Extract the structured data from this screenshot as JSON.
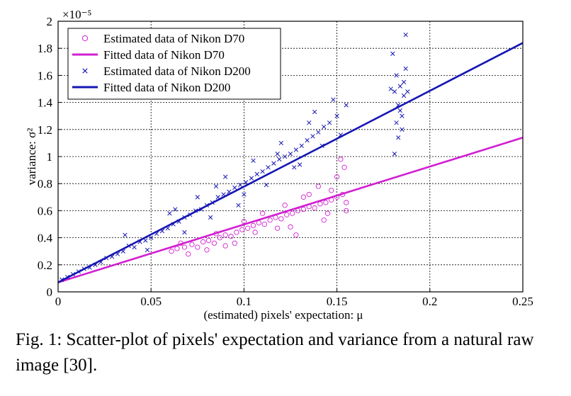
{
  "caption": "Fig. 1: Scatter-plot of pixels' expectation and variance from a natural raw image [30].",
  "chart_data": {
    "type": "scatter",
    "xlabel": "(estimated) pixels' expectation: μ",
    "ylabel": "variance: σ²",
    "y_multiplier": "×10⁻⁵",
    "xlim": [
      0,
      0.25
    ],
    "ylim": [
      0,
      2
    ],
    "x_ticks": [
      "0",
      "0.05",
      "0.1",
      "0.15",
      "0.2",
      "0.25"
    ],
    "y_ticks": [
      "0",
      "0.2",
      "0.4",
      "0.6",
      "0.8",
      "1",
      "1.2",
      "1.4",
      "1.6",
      "1.8",
      "2"
    ],
    "grid": true,
    "legend_position": "top-left",
    "colors": {
      "d70": "#d21fd2",
      "d200": "#1515b4"
    },
    "series": [
      {
        "name": "Estimated data of Nikon D70",
        "marker": "circle",
        "color": "#d21fd2",
        "points": [
          [
            0.061,
            0.3
          ],
          [
            0.064,
            0.32
          ],
          [
            0.068,
            0.33
          ],
          [
            0.072,
            0.35
          ],
          [
            0.075,
            0.33
          ],
          [
            0.078,
            0.37
          ],
          [
            0.081,
            0.38
          ],
          [
            0.084,
            0.36
          ],
          [
            0.087,
            0.4
          ],
          [
            0.09,
            0.42
          ],
          [
            0.093,
            0.41
          ],
          [
            0.096,
            0.44
          ],
          [
            0.099,
            0.46
          ],
          [
            0.102,
            0.47
          ],
          [
            0.105,
            0.49
          ],
          [
            0.108,
            0.51
          ],
          [
            0.111,
            0.5
          ],
          [
            0.114,
            0.53
          ],
          [
            0.117,
            0.55
          ],
          [
            0.12,
            0.54
          ],
          [
            0.123,
            0.57
          ],
          [
            0.126,
            0.58
          ],
          [
            0.129,
            0.6
          ],
          [
            0.132,
            0.61
          ],
          [
            0.135,
            0.63
          ],
          [
            0.138,
            0.62
          ],
          [
            0.141,
            0.65
          ],
          [
            0.144,
            0.66
          ],
          [
            0.147,
            0.68
          ],
          [
            0.15,
            0.7
          ],
          [
            0.153,
            0.72
          ],
          [
            0.155,
            0.66
          ],
          [
            0.07,
            0.28
          ],
          [
            0.085,
            0.43
          ],
          [
            0.095,
            0.36
          ],
          [
            0.11,
            0.58
          ],
          [
            0.125,
            0.48
          ],
          [
            0.135,
            0.72
          ],
          [
            0.145,
            0.58
          ],
          [
            0.15,
            0.85
          ],
          [
            0.152,
            0.98
          ],
          [
            0.154,
            0.92
          ],
          [
            0.128,
            0.42
          ],
          [
            0.14,
            0.78
          ],
          [
            0.118,
            0.47
          ],
          [
            0.1,
            0.52
          ],
          [
            0.08,
            0.31
          ],
          [
            0.09,
            0.34
          ],
          [
            0.106,
            0.44
          ],
          [
            0.132,
            0.7
          ],
          [
            0.147,
            0.75
          ],
          [
            0.155,
            0.6
          ],
          [
            0.143,
            0.53
          ],
          [
            0.122,
            0.64
          ],
          [
            0.066,
            0.36
          ]
        ]
      },
      {
        "name": "Fitted data of Nikon D70",
        "type": "line",
        "color": "#d21fd2",
        "x": [
          0,
          0.25
        ],
        "y": [
          0.07,
          1.14
        ]
      },
      {
        "name": "Estimated data of Nikon D200",
        "marker": "x",
        "color": "#1515b4",
        "points": [
          [
            0.002,
            0.09
          ],
          [
            0.005,
            0.11
          ],
          [
            0.008,
            0.13
          ],
          [
            0.011,
            0.15
          ],
          [
            0.014,
            0.17
          ],
          [
            0.017,
            0.18
          ],
          [
            0.02,
            0.2
          ],
          [
            0.023,
            0.22
          ],
          [
            0.026,
            0.25
          ],
          [
            0.029,
            0.26
          ],
          [
            0.032,
            0.28
          ],
          [
            0.035,
            0.3
          ],
          [
            0.038,
            0.34
          ],
          [
            0.041,
            0.33
          ],
          [
            0.044,
            0.37
          ],
          [
            0.047,
            0.38
          ],
          [
            0.05,
            0.4
          ],
          [
            0.053,
            0.43
          ],
          [
            0.056,
            0.45
          ],
          [
            0.059,
            0.47
          ],
          [
            0.062,
            0.5
          ],
          [
            0.065,
            0.52
          ],
          [
            0.068,
            0.55
          ],
          [
            0.071,
            0.57
          ],
          [
            0.074,
            0.6
          ],
          [
            0.077,
            0.61
          ],
          [
            0.08,
            0.64
          ],
          [
            0.083,
            0.66
          ],
          [
            0.086,
            0.7
          ],
          [
            0.089,
            0.72
          ],
          [
            0.092,
            0.74
          ],
          [
            0.095,
            0.77
          ],
          [
            0.098,
            0.79
          ],
          [
            0.101,
            0.81
          ],
          [
            0.104,
            0.84
          ],
          [
            0.107,
            0.87
          ],
          [
            0.11,
            0.89
          ],
          [
            0.113,
            0.92
          ],
          [
            0.116,
            0.95
          ],
          [
            0.119,
            0.98
          ],
          [
            0.122,
            1.0
          ],
          [
            0.125,
            1.02
          ],
          [
            0.128,
            1.05
          ],
          [
            0.131,
            1.08
          ],
          [
            0.134,
            1.12
          ],
          [
            0.137,
            1.15
          ],
          [
            0.14,
            1.18
          ],
          [
            0.143,
            1.22
          ],
          [
            0.146,
            1.25
          ],
          [
            0.15,
            1.3
          ],
          [
            0.036,
            0.42
          ],
          [
            0.048,
            0.31
          ],
          [
            0.06,
            0.58
          ],
          [
            0.068,
            0.44
          ],
          [
            0.075,
            0.7
          ],
          [
            0.082,
            0.55
          ],
          [
            0.09,
            0.85
          ],
          [
            0.097,
            0.64
          ],
          [
            0.105,
            0.97
          ],
          [
            0.112,
            0.79
          ],
          [
            0.12,
            1.1
          ],
          [
            0.127,
            0.92
          ],
          [
            0.135,
            1.25
          ],
          [
            0.142,
            1.08
          ],
          [
            0.148,
            1.42
          ],
          [
            0.152,
            1.16
          ],
          [
            0.155,
            1.38
          ],
          [
            0.138,
            1.33
          ],
          [
            0.13,
            0.94
          ],
          [
            0.118,
            1.02
          ],
          [
            0.1,
            0.72
          ],
          [
            0.085,
            0.78
          ],
          [
            0.063,
            0.61
          ],
          [
            0.18,
            1.76
          ],
          [
            0.181,
            1.02
          ],
          [
            0.182,
            1.25
          ],
          [
            0.183,
            1.38
          ],
          [
            0.184,
            1.52
          ],
          [
            0.185,
            1.2
          ],
          [
            0.186,
            1.45
          ],
          [
            0.187,
            1.65
          ],
          [
            0.187,
            1.9
          ],
          [
            0.182,
            1.6
          ],
          [
            0.184,
            1.34
          ],
          [
            0.186,
            1.55
          ],
          [
            0.183,
            1.14
          ],
          [
            0.188,
            1.48
          ],
          [
            0.185,
            1.3
          ],
          [
            0.181,
            1.48
          ],
          [
            0.179,
            1.5
          ]
        ]
      },
      {
        "name": "Fitted data of Nikon D200",
        "type": "line",
        "color": "#1515b4",
        "x": [
          0,
          0.25
        ],
        "y": [
          0.07,
          1.84
        ]
      }
    ]
  }
}
